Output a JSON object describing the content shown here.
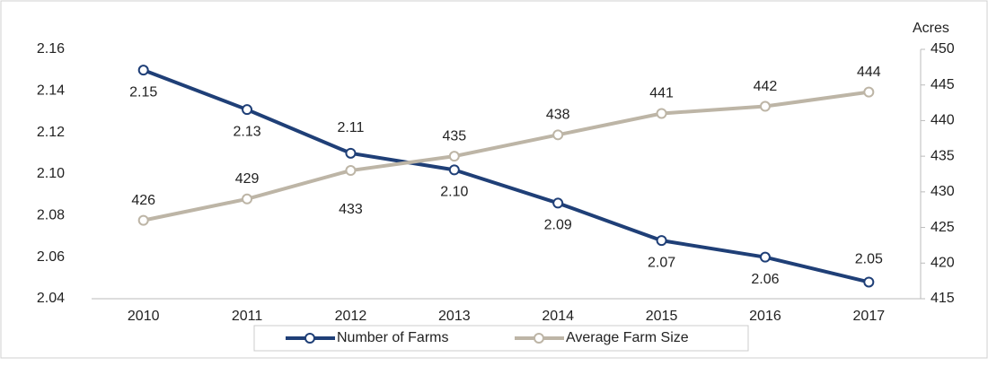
{
  "chart_data": {
    "type": "line",
    "categories": [
      "2010",
      "2011",
      "2012",
      "2013",
      "2014",
      "2015",
      "2016",
      "2017"
    ],
    "series": [
      {
        "name": "Number of Farms",
        "color": "#1f3f77",
        "values": [
          2.15,
          2.131,
          2.11,
          2.102,
          2.086,
          2.068,
          2.06,
          2.048
        ],
        "value_labels": [
          "2.15",
          "2.13",
          "2.11",
          "2.10",
          "2.09",
          "2.07",
          "2.06",
          "2.05"
        ]
      },
      {
        "name": "Average Farm Size",
        "color": "#bdb5a6",
        "axis": "y2",
        "values": [
          426,
          429,
          433,
          435,
          438,
          441,
          442,
          444
        ]
      }
    ],
    "ylim": [
      2.04,
      2.16
    ],
    "yticks": [
      2.04,
      2.06,
      2.08,
      {
        "value": 2.1,
        "label": "2.10"
      },
      2.12,
      2.14,
      2.16
    ],
    "y2label": "Acres",
    "y2lim": [
      415,
      450
    ],
    "y2ticks": [
      415,
      420,
      425,
      430,
      435,
      440,
      445,
      450
    ],
    "legend": "bottom"
  }
}
